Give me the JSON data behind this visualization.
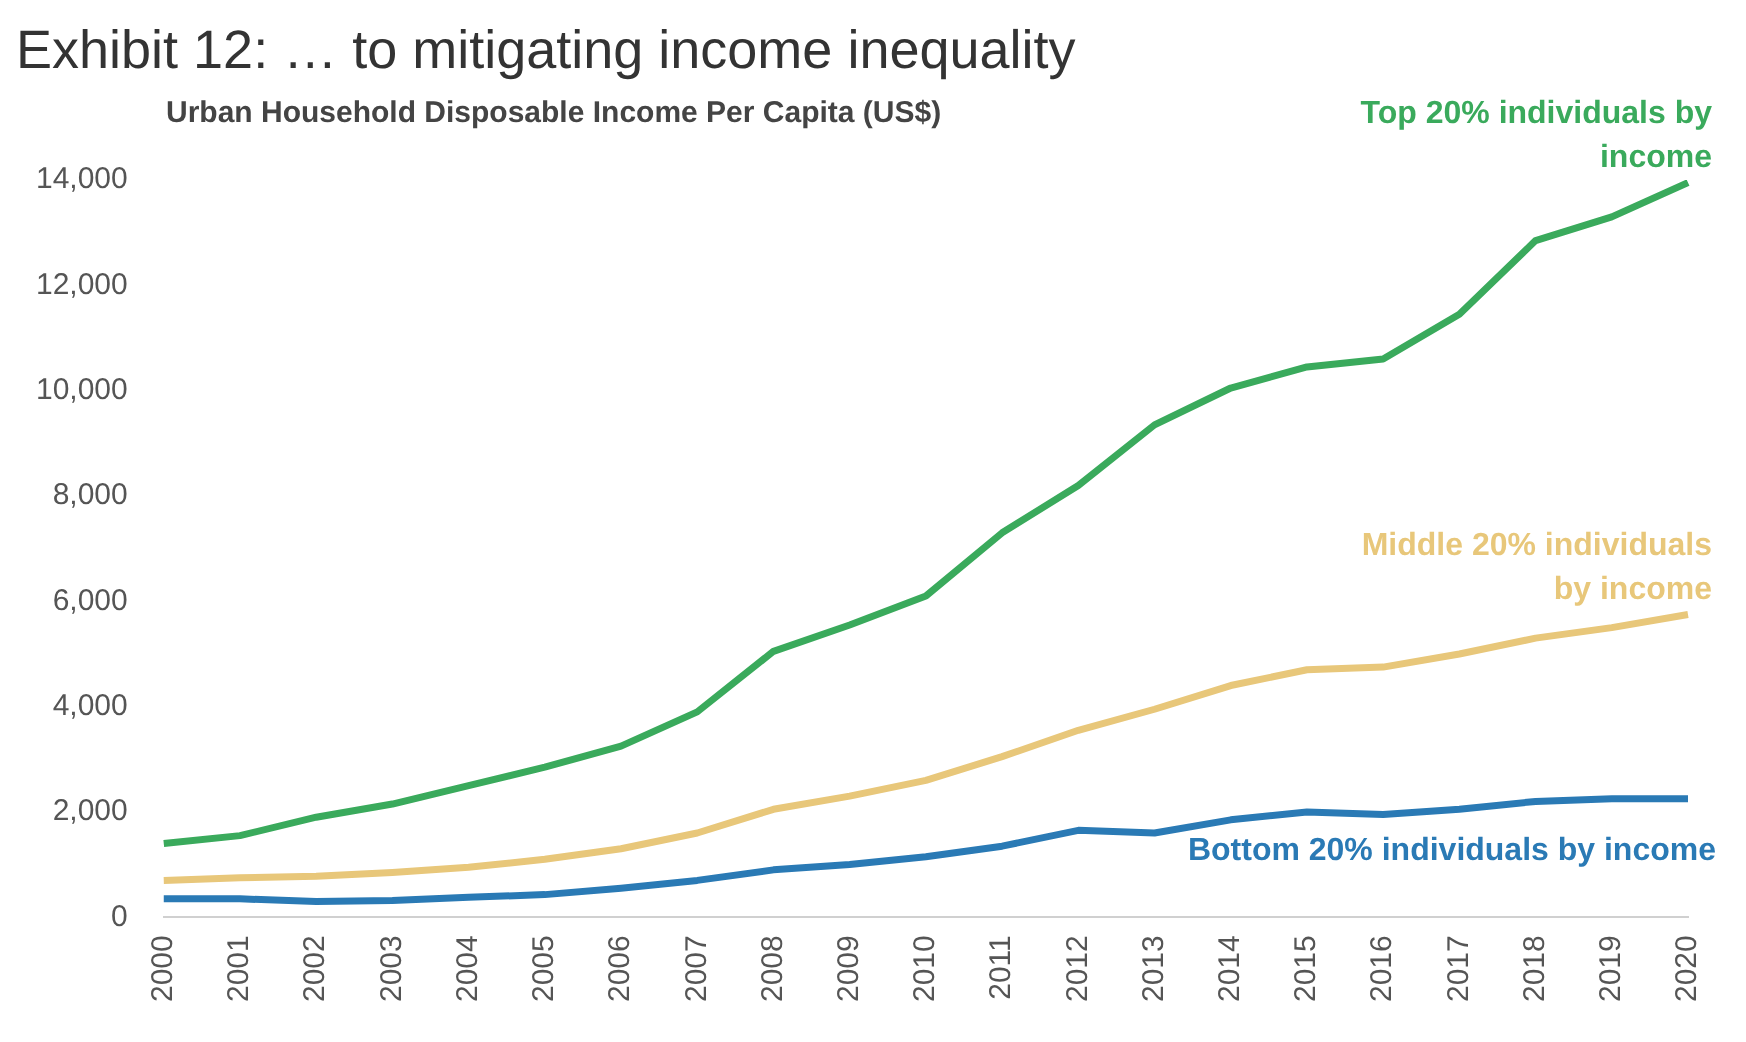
{
  "chart_data": {
    "type": "line",
    "title": "Exhibit 12:  … to mitigating income inequality",
    "subtitle": "Urban Household Disposable Income Per Capita (US$)",
    "categories": [
      "2000",
      "2001",
      "2002",
      "2003",
      "2004",
      "2005",
      "2006",
      "2007",
      "2008",
      "2009",
      "2010",
      "2011",
      "2012",
      "2013",
      "2014",
      "2015",
      "2016",
      "2017",
      "2018",
      "2019",
      "2020"
    ],
    "series": [
      {
        "name": "Top 20% individuals by income",
        "color": "#3aaa5c",
        "values": [
          1400,
          1550,
          1900,
          2150,
          2500,
          2850,
          3250,
          3900,
          5050,
          5550,
          6100,
          7300,
          8200,
          9350,
          10050,
          10450,
          10600,
          11450,
          12850,
          13300,
          13950
        ]
      },
      {
        "name": "Middle 20% individuals by income",
        "color": "#e8c77a",
        "values": [
          700,
          750,
          780,
          850,
          950,
          1100,
          1300,
          1600,
          2050,
          2300,
          2600,
          3050,
          3550,
          3950,
          4400,
          4700,
          4750,
          5000,
          5300,
          5500,
          5750
        ]
      },
      {
        "name": "Bottom 20% individuals by income",
        "color": "#2a7ab5",
        "values": [
          350,
          350,
          300,
          320,
          380,
          430,
          550,
          700,
          900,
          1000,
          1150,
          1350,
          1650,
          1600,
          1850,
          2000,
          1950,
          2050,
          2200,
          2250,
          2250
        ]
      }
    ],
    "ylim": [
      0,
      14000
    ],
    "yticks": [
      0,
      {
        "value": 2000,
        "label": "2,000"
      },
      {
        "value": 4000,
        "label": "4,000"
      },
      {
        "value": 6000,
        "label": "6,000"
      },
      {
        "value": 8000,
        "label": "8,000"
      },
      {
        "value": 10000,
        "label": "10,000"
      },
      {
        "value": 12000,
        "label": "12,000"
      },
      {
        "value": 14000,
        "label": "14,000"
      }
    ],
    "grid": false,
    "legend": false,
    "marker": "none",
    "line_style": "solid"
  }
}
